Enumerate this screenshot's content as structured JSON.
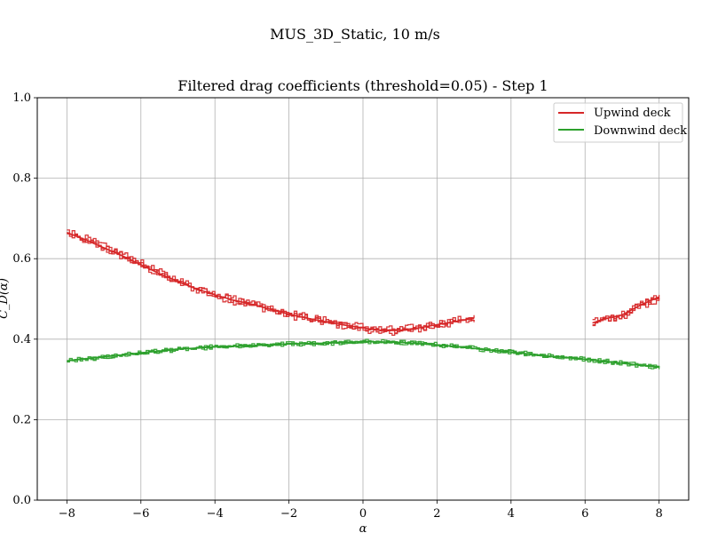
{
  "suptitle": "MUS_3D_Static, 10 m/s",
  "chart_data": {
    "type": "line",
    "title": "Filtered drag coefficients (threshold=0.05) - Step 1",
    "xlabel": "α",
    "ylabel": "C_D(α)",
    "xlim": [
      -8.8,
      8.8
    ],
    "ylim": [
      0.0,
      1.0
    ],
    "xticks": [
      -8,
      -6,
      -4,
      -2,
      0,
      2,
      4,
      6,
      8
    ],
    "yticks": [
      0.0,
      0.2,
      0.4,
      0.6,
      0.8,
      1.0
    ],
    "xtick_labels": [
      "−8",
      "−6",
      "−4",
      "−2",
      "0",
      "2",
      "4",
      "6",
      "8"
    ],
    "ytick_labels": [
      "0.0",
      "0.2",
      "0.4",
      "0.6",
      "0.8",
      "1.0"
    ],
    "grid": true,
    "legend_position": "upper right",
    "series": [
      {
        "name": "Upwind deck",
        "color": "#d62728",
        "segments": [
          {
            "x": [
              -8.0,
              -7.5,
              -7.0,
              -6.5,
              -6.0,
              -5.5,
              -5.0,
              -4.5,
              -4.0,
              -3.5,
              -3.0,
              -2.5,
              -2.0,
              -1.5,
              -1.0,
              -0.5,
              0.0,
              0.5,
              1.0,
              1.5,
              2.0,
              2.5,
              3.0
            ],
            "y": [
              0.665,
              0.647,
              0.627,
              0.607,
              0.585,
              0.563,
              0.543,
              0.525,
              0.51,
              0.497,
              0.487,
              0.474,
              0.462,
              0.452,
              0.443,
              0.435,
              0.428,
              0.421,
              0.422,
              0.428,
              0.436,
              0.444,
              0.452
            ]
          },
          {
            "x": [
              6.2,
              6.5,
              7.0,
              7.5,
              8.0
            ],
            "y": [
              0.44,
              0.45,
              0.46,
              0.485,
              0.505
            ]
          }
        ]
      },
      {
        "name": "Downwind deck",
        "color": "#2ca02c",
        "segments": [
          {
            "x": [
              -8.0,
              -7.0,
              -6.0,
              -5.0,
              -4.0,
              -3.0,
              -2.0,
              -1.0,
              0.0,
              1.0,
              2.0,
              3.0,
              4.0,
              5.0,
              6.0,
              7.0,
              8.0
            ],
            "y": [
              0.346,
              0.356,
              0.366,
              0.375,
              0.381,
              0.384,
              0.388,
              0.39,
              0.394,
              0.392,
              0.386,
              0.377,
              0.368,
              0.358,
              0.35,
              0.34,
              0.33
            ]
          }
        ]
      }
    ]
  }
}
